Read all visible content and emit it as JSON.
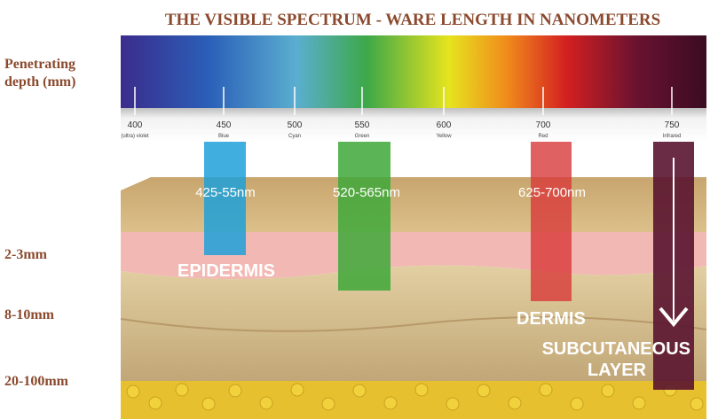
{
  "header": {
    "title": "THE VISIBLE SPECTRUM - WARE LENGTH IN NANOMETERS"
  },
  "depth_labels": {
    "heading": [
      "Penetrating",
      "depth (mm)"
    ],
    "levels": [
      "2-3mm",
      "8-10mm",
      "20-100mm"
    ]
  },
  "spectrum": {
    "ticks": [
      {
        "nm": "400",
        "name": "(ultra) violet"
      },
      {
        "nm": "450",
        "name": "Blue"
      },
      {
        "nm": "500",
        "name": "Cyan"
      },
      {
        "nm": "550",
        "name": "Green"
      },
      {
        "nm": "600",
        "name": "Yellow"
      },
      {
        "nm": "700",
        "name": "Red"
      },
      {
        "nm": "750",
        "name": "Infrared"
      }
    ]
  },
  "bands": [
    "425-55nm",
    "520-565nm",
    "625-700nm"
  ],
  "layers": {
    "epidermis": "EPIDERMIS",
    "dermis": "DERMIS",
    "subcutaneous": [
      "SUBCUTANEOUS",
      "LAYER"
    ]
  }
}
